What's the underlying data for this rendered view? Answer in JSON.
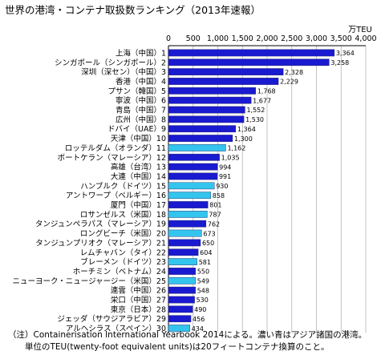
{
  "chart_data": {
    "type": "bar",
    "orientation": "horizontal",
    "title": "世界の港湾・コンテナ取扱数ランキング（2013年速報）",
    "unit": "万TEU",
    "xlim": [
      0,
      4000
    ],
    "ticks": [
      0,
      500,
      1000,
      1500,
      2000,
      2500,
      3000,
      3500,
      4000
    ],
    "tick_labels": [
      "0",
      "500",
      "1,000",
      "1,500",
      "2,000",
      "2,500",
      "3,000",
      "3,500",
      "4,000"
    ],
    "grid": true,
    "colors": {
      "asia": "#1a1ad0",
      "other": "#33c5ee",
      "grid": "#b4b4b4"
    },
    "bars": [
      {
        "label": "上海（中国）1",
        "value": 3364,
        "value_label": "3,364",
        "region": "asia"
      },
      {
        "label": "シンガポール（シンガポール）2",
        "value": 3258,
        "value_label": "3,258",
        "region": "asia"
      },
      {
        "label": "深圳（深セン）（中国）3",
        "value": 2328,
        "value_label": "2,328",
        "region": "asia"
      },
      {
        "label": "香港（中国）4",
        "value": 2229,
        "value_label": "2,229",
        "region": "asia"
      },
      {
        "label": "プサン（韓国）5",
        "value": 1768,
        "value_label": "1,768",
        "region": "asia"
      },
      {
        "label": "寧波（中国）6",
        "value": 1677,
        "value_label": "1,677",
        "region": "asia"
      },
      {
        "label": "青島（中国）7",
        "value": 1552,
        "value_label": "1,552",
        "region": "asia"
      },
      {
        "label": "広州（中国）8",
        "value": 1530,
        "value_label": "1,530",
        "region": "asia"
      },
      {
        "label": "ドバイ（UAE）9",
        "value": 1364,
        "value_label": "1,364",
        "region": "asia"
      },
      {
        "label": "天津（中国）10",
        "value": 1300,
        "value_label": "1,300",
        "region": "asia"
      },
      {
        "label": "ロッテルダム（オランダ）11",
        "value": 1162,
        "value_label": "1,162",
        "region": "other"
      },
      {
        "label": "ポートケラン（マレーシア）12",
        "value": 1035,
        "value_label": "1,035",
        "region": "asia"
      },
      {
        "label": "高雄（台湾）13",
        "value": 994,
        "value_label": "994",
        "region": "asia"
      },
      {
        "label": "大連（中国）14",
        "value": 991,
        "value_label": "991",
        "region": "asia"
      },
      {
        "label": "ハンブルク（ドイツ）15",
        "value": 930,
        "value_label": "930",
        "region": "other"
      },
      {
        "label": "アントワープ（ベルギー）16",
        "value": 858,
        "value_label": "858",
        "region": "other"
      },
      {
        "label": "厦門（中国）17",
        "value": 801,
        "value_label": "801",
        "region": "asia"
      },
      {
        "label": "ロサンゼルス（米国）18",
        "value": 787,
        "value_label": "787",
        "region": "other"
      },
      {
        "label": "タンジュンペラパス（マレーシア）19",
        "value": 762,
        "value_label": "762",
        "region": "asia"
      },
      {
        "label": "ロングビーチ（米国）20",
        "value": 673,
        "value_label": "673",
        "region": "other"
      },
      {
        "label": "タンジュンプリオク（マレーシア）21",
        "value": 650,
        "value_label": "650",
        "region": "asia"
      },
      {
        "label": "レムチャバン（タイ）22",
        "value": 604,
        "value_label": "604",
        "region": "asia"
      },
      {
        "label": "ブレーメン（ドイツ）23",
        "value": 581,
        "value_label": "581",
        "region": "other"
      },
      {
        "label": "ホーチミン（ベトナム）24",
        "value": 550,
        "value_label": "550",
        "region": "asia"
      },
      {
        "label": "ニューヨーク・ニュージャージー（米国）25",
        "value": 549,
        "value_label": "549",
        "region": "other"
      },
      {
        "label": "連雲（中国）26",
        "value": 548,
        "value_label": "548",
        "region": "asia"
      },
      {
        "label": "栄口（中国）27",
        "value": 530,
        "value_label": "530",
        "region": "asia"
      },
      {
        "label": "東京（日本）28",
        "value": 490,
        "value_label": "490",
        "region": "asia"
      },
      {
        "label": "ジェッダ（サウジアラビア）29",
        "value": 456,
        "value_label": "456",
        "region": "asia"
      },
      {
        "label": "アルヘシラス（スペイン）30",
        "value": 434,
        "value_label": "434",
        "region": "other"
      }
    ]
  },
  "notes": {
    "line1": "（注）Containerisation International Yearbook 2014による。濃い青はアジア諸国の港湾。",
    "line2": "単位のTEU(twenty-foot equivalent units)は20フィートコンテナ換算のこと。"
  }
}
